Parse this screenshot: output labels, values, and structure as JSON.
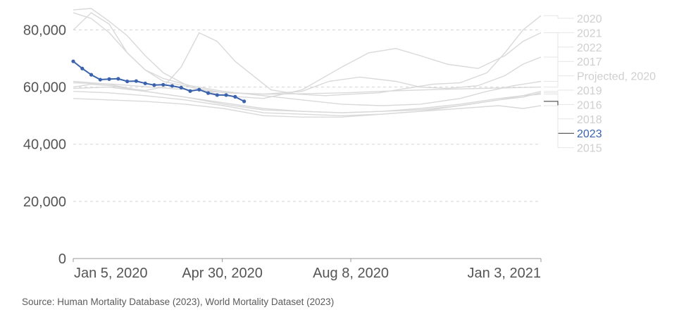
{
  "source": "Source: Human Mortality Database (2023), World Mortality Dataset (2023)",
  "chart_data": {
    "type": "line",
    "title": "",
    "xlabel": "",
    "ylabel": "",
    "grid": true,
    "xlim": [
      "2020-01-05",
      "2021-01-03"
    ],
    "ylim": [
      0,
      88000
    ],
    "y_ticks": [
      0,
      20000,
      40000,
      60000,
      80000
    ],
    "y_tick_labels": [
      "0",
      "20,000",
      "40,000",
      "60,000",
      "80,000"
    ],
    "x_ticks": [
      "2020-01-05",
      "2020-04-30",
      "2020-08-08",
      "2021-01-03"
    ],
    "x_tick_labels": [
      "Jan 5, 2020",
      "Apr 30, 2020",
      "Aug 8, 2020",
      "Jan 3, 2021"
    ],
    "legend": "right",
    "highlight_color": "#3a62ad",
    "background_line_color": "#d9d9d9",
    "series": [
      {
        "name": "2020",
        "highlight": false,
        "x": [
          "2020-01-05",
          "2020-01-19",
          "2020-02-02",
          "2020-02-16",
          "2020-03-01",
          "2020-03-15",
          "2020-03-29",
          "2020-04-12",
          "2020-04-26",
          "2020-05-10",
          "2020-05-24",
          "2020-06-07",
          "2020-06-28",
          "2020-07-19",
          "2020-08-08",
          "2020-08-30",
          "2020-09-20",
          "2020-10-11",
          "2020-11-01",
          "2020-11-22",
          "2020-12-06",
          "2020-12-20",
          "2021-01-03"
        ],
        "values": [
          60000,
          61000,
          60500,
          59500,
          58800,
          60000,
          67000,
          79000,
          76000,
          69000,
          64000,
          59000,
          57500,
          57000,
          57500,
          58000,
          59500,
          61000,
          61500,
          65000,
          72000,
          80000,
          85000
        ]
      },
      {
        "name": "2021",
        "highlight": false,
        "x": [
          "2020-01-05",
          "2020-01-19",
          "2020-02-02",
          "2020-02-16",
          "2020-03-01",
          "2020-03-15",
          "2020-04-05",
          "2020-05-01",
          "2020-06-01",
          "2020-07-01",
          "2020-08-01",
          "2020-09-01",
          "2020-10-01",
          "2020-11-01",
          "2020-11-22",
          "2020-12-13",
          "2021-01-03"
        ],
        "values": [
          80000,
          86000,
          82000,
          72000,
          66000,
          63000,
          60500,
          58500,
          57000,
          55500,
          54000,
          53500,
          54000,
          56000,
          58500,
          60500,
          62000
        ]
      },
      {
        "name": "2022",
        "highlight": false,
        "x": [
          "2020-01-05",
          "2020-01-19",
          "2020-02-02",
          "2020-02-16",
          "2020-03-01",
          "2020-03-15",
          "2020-04-05",
          "2020-05-01",
          "2020-06-01",
          "2020-07-01",
          "2020-08-01",
          "2020-08-22",
          "2020-09-12",
          "2020-10-01",
          "2020-10-22",
          "2020-11-15",
          "2020-12-06",
          "2020-12-20",
          "2021-01-03"
        ],
        "values": [
          87000,
          87500,
          83000,
          78000,
          71000,
          65000,
          60000,
          57000,
          56000,
          59000,
          67000,
          72000,
          73500,
          71000,
          68000,
          66500,
          71000,
          76000,
          79000
        ]
      },
      {
        "name": "2017",
        "highlight": false,
        "x": [
          "2020-01-05",
          "2020-01-19",
          "2020-02-02",
          "2020-02-16",
          "2020-03-01",
          "2020-03-15",
          "2020-04-05",
          "2020-05-01",
          "2020-06-01",
          "2020-07-01",
          "2020-07-22",
          "2020-08-15",
          "2020-09-12",
          "2020-10-01",
          "2020-10-22",
          "2020-11-15",
          "2020-12-06",
          "2020-12-20",
          "2021-01-03"
        ],
        "values": [
          86000,
          84000,
          79000,
          72000,
          66000,
          62000,
          60000,
          58000,
          57500,
          58500,
          62000,
          63500,
          62000,
          60000,
          59500,
          60500,
          64000,
          68000,
          70500
        ]
      },
      {
        "name": "Projected, 2020",
        "highlight": false,
        "x": [
          "2020-01-05",
          "2020-02-05",
          "2020-03-05",
          "2020-04-05",
          "2020-05-05",
          "2020-06-05",
          "2020-07-05",
          "2020-08-05",
          "2020-09-05",
          "2020-10-05",
          "2020-11-05",
          "2020-12-05",
          "2021-01-03"
        ],
        "values": [
          61500,
          61000,
          60000,
          59000,
          58000,
          57500,
          57700,
          58000,
          58600,
          59000,
          59400,
          59700,
          60000
        ]
      },
      {
        "name": "2019",
        "highlight": false,
        "x": [
          "2020-01-05",
          "2020-02-01",
          "2020-03-01",
          "2020-04-01",
          "2020-05-01",
          "2020-06-01",
          "2020-07-01",
          "2020-08-01",
          "2020-09-01",
          "2020-10-01",
          "2020-11-01",
          "2020-12-01",
          "2020-12-20",
          "2021-01-03"
        ],
        "values": [
          59500,
          60000,
          58500,
          56500,
          54500,
          52500,
          51500,
          51000,
          51500,
          52500,
          54000,
          56000,
          57000,
          58500
        ]
      },
      {
        "name": "2016",
        "highlight": false,
        "x": [
          "2020-01-05",
          "2020-02-01",
          "2020-03-01",
          "2020-04-01",
          "2020-05-01",
          "2020-06-01",
          "2020-07-01",
          "2020-08-01",
          "2020-09-01",
          "2020-10-01",
          "2020-11-01",
          "2020-12-01",
          "2020-12-20",
          "2021-01-03"
        ],
        "values": [
          58500,
          58000,
          57000,
          55500,
          53500,
          51000,
          50500,
          50000,
          50500,
          51500,
          53500,
          55500,
          56500,
          58000
        ]
      },
      {
        "name": "2018",
        "highlight": false,
        "x": [
          "2020-01-05",
          "2020-02-01",
          "2020-03-01",
          "2020-04-01",
          "2020-05-01",
          "2020-06-01",
          "2020-07-01",
          "2020-08-01",
          "2020-09-01",
          "2020-10-01",
          "2020-11-01",
          "2020-12-01",
          "2020-12-20",
          "2021-01-03"
        ],
        "values": [
          62000,
          61000,
          58500,
          56500,
          54000,
          52000,
          51500,
          51000,
          51500,
          52000,
          53500,
          55500,
          57000,
          57500
        ]
      },
      {
        "name": "2023",
        "highlight": true,
        "x": [
          "2020-01-05",
          "2020-01-12",
          "2020-01-19",
          "2020-01-26",
          "2020-02-02",
          "2020-02-09",
          "2020-02-16",
          "2020-02-23",
          "2020-03-01",
          "2020-03-08",
          "2020-03-15",
          "2020-03-22",
          "2020-03-29",
          "2020-04-05",
          "2020-04-12",
          "2020-04-19",
          "2020-04-26",
          "2020-05-03",
          "2020-05-10",
          "2020-05-17"
        ],
        "values": [
          69000,
          66500,
          64300,
          62600,
          62800,
          62900,
          62000,
          62100,
          61300,
          60700,
          60800,
          60400,
          59800,
          58600,
          59100,
          57900,
          57200,
          57200,
          56600,
          55000
        ]
      },
      {
        "name": "2015",
        "highlight": false,
        "x": [
          "2020-01-05",
          "2020-02-01",
          "2020-03-01",
          "2020-04-01",
          "2020-05-01",
          "2020-06-01",
          "2020-07-01",
          "2020-08-01",
          "2020-09-01",
          "2020-10-01",
          "2020-11-01",
          "2020-12-01",
          "2020-12-20",
          "2021-01-03"
        ],
        "values": [
          56000,
          55500,
          55000,
          54000,
          52500,
          50000,
          49500,
          49500,
          50500,
          51500,
          52500,
          53500,
          52500,
          53500
        ]
      }
    ]
  }
}
